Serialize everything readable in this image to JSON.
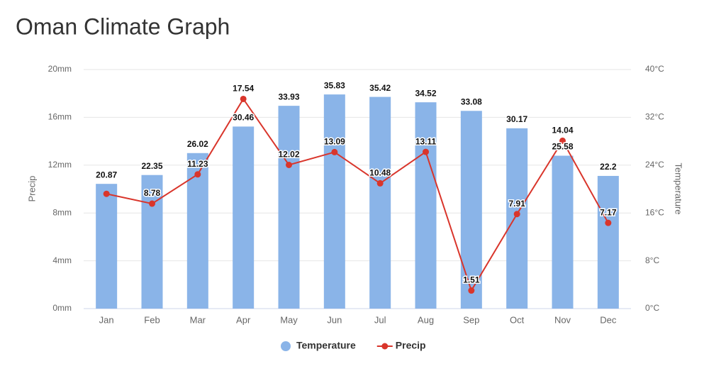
{
  "chart_data": {
    "type": "bar-line",
    "title": "Oman Climate Graph",
    "categories": [
      "Jan",
      "Feb",
      "Mar",
      "Apr",
      "May",
      "Jun",
      "Jul",
      "Aug",
      "Sep",
      "Oct",
      "Nov",
      "Dec"
    ],
    "ylabel": "Precip",
    "y2label": "Temperature",
    "ylim": [
      0,
      20
    ],
    "yticks": [
      {
        "value": 0,
        "label": "0mm"
      },
      {
        "value": 4,
        "label": "4mm"
      },
      {
        "value": 8,
        "label": "8mm"
      },
      {
        "value": 12,
        "label": "12mm"
      },
      {
        "value": 16,
        "label": "16mm"
      },
      {
        "value": 20,
        "label": "20mm"
      }
    ],
    "y2lim": [
      0,
      40
    ],
    "y2ticks": [
      {
        "value": 0,
        "label": "0°C"
      },
      {
        "value": 8,
        "label": "8°C"
      },
      {
        "value": 16,
        "label": "16°C"
      },
      {
        "value": 24,
        "label": "24°C"
      },
      {
        "value": 32,
        "label": "32°C"
      },
      {
        "value": 40,
        "label": "40°C"
      }
    ],
    "grid": true,
    "legend": "bottom",
    "series": [
      {
        "name": "Temperature",
        "type": "bar",
        "axis": "y2",
        "color": "#8ab4e8",
        "values": [
          20.87,
          22.35,
          26.02,
          30.46,
          33.93,
          35.83,
          35.42,
          34.52,
          33.08,
          30.17,
          25.58,
          22.2
        ]
      },
      {
        "name": "Precip",
        "type": "line",
        "axis": "y",
        "color": "#d9352b",
        "values": [
          9.6,
          8.78,
          11.23,
          17.54,
          12.02,
          13.09,
          10.48,
          13.11,
          1.51,
          7.91,
          14.04,
          7.17
        ],
        "value_labels": [
          null,
          "8.78",
          "11.23",
          "17.54",
          "12.02",
          "13.09",
          "10.48",
          "13.11",
          "1.51",
          "7.91",
          "14.04",
          "7.17"
        ]
      }
    ]
  }
}
